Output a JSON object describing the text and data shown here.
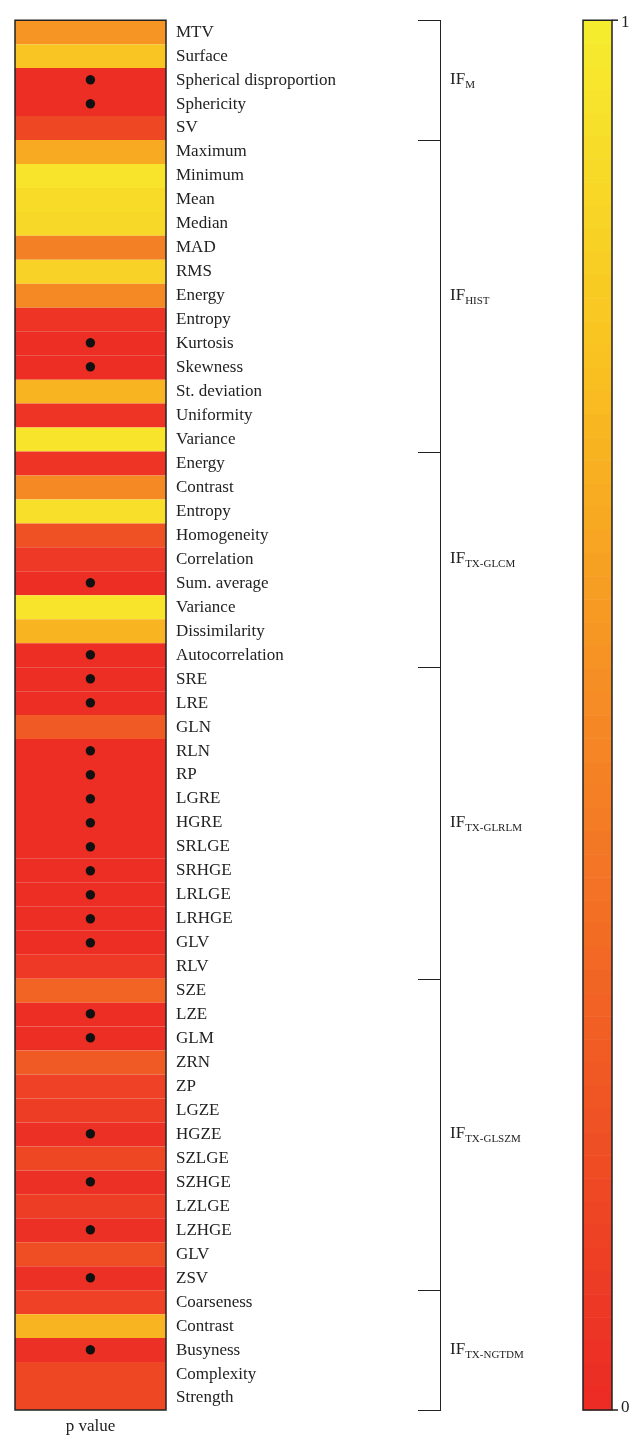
{
  "chart_data": {
    "type": "heatmap",
    "xlabel": "p value",
    "categories": [
      null
    ],
    "y_categories": [
      "MTV",
      "Surface",
      "Spherical disproportion",
      "Sphericity",
      "SV",
      "Maximum",
      "Minimum",
      "Mean",
      "Median",
      "MAD",
      "RMS",
      "Energy",
      "Entropy",
      "Kurtosis",
      "Skewness",
      "St. deviation",
      "Uniformity",
      "Variance",
      "Energy",
      "Contrast",
      "Entropy",
      "Homogeneity",
      "Correlation",
      "Sum. average",
      "Variance",
      "Dissimilarity",
      "Autocorrelation",
      "SRE",
      "LRE",
      "GLN",
      "RLN",
      "RP",
      "LGRE",
      "HGRE",
      "SRLGE",
      "SRHGE",
      "LRLGE",
      "LRHGE",
      "GLV",
      "RLV",
      "SZE",
      "LZE",
      "GLM",
      "ZRN",
      "ZP",
      "LGZE",
      "HGZE",
      "SZLGE",
      "SZHGE",
      "LZLGE",
      "LZHGE",
      "GLV",
      "ZSV",
      "Coarseness",
      "Contrast",
      "Busyness",
      "Complexity",
      "Strength"
    ],
    "y2_categories": [
      null,
      null,
      "IF$_{M}$",
      null,
      null,
      null,
      null,
      null,
      null,
      null,
      null,
      "IF$_{HIST}$",
      null,
      null,
      null,
      null,
      null,
      null,
      null,
      null,
      null,
      null,
      "IF$_{TX-GLCM}$",
      null,
      null,
      null,
      null,
      null,
      null,
      null,
      null,
      null,
      null,
      "IF$_{TX-GLRLM}$",
      null,
      null,
      null,
      null,
      null,
      null,
      null,
      null,
      null,
      null,
      null,
      null,
      "IF$_{TX-GLSZM}$",
      null,
      null,
      null,
      null,
      null,
      null,
      null,
      null,
      "IF$_{TX-NGTDM}$",
      null,
      null
    ],
    "cells": [
      [
        0.55
      ],
      [
        0.78
      ],
      [
        0.02
      ],
      [
        0.02
      ],
      [
        0.15
      ],
      [
        0.65
      ],
      [
        0.95
      ],
      [
        0.9
      ],
      [
        0.88
      ],
      [
        0.45
      ],
      [
        0.85
      ],
      [
        0.5
      ],
      [
        0.05
      ],
      [
        0.02
      ],
      [
        0.02
      ],
      [
        0.7
      ],
      [
        0.05
      ],
      [
        0.95
      ],
      [
        0.05
      ],
      [
        0.5
      ],
      [
        0.92
      ],
      [
        0.2
      ],
      [
        0.08
      ],
      [
        0.02
      ],
      [
        0.95
      ],
      [
        0.7
      ],
      [
        0.02
      ],
      [
        0.02
      ],
      [
        0.02
      ],
      [
        0.25
      ],
      [
        0.02
      ],
      [
        0.02
      ],
      [
        0.02
      ],
      [
        0.02
      ],
      [
        0.02
      ],
      [
        0.02
      ],
      [
        0.02
      ],
      [
        0.02
      ],
      [
        0.02
      ],
      [
        0.08
      ],
      [
        0.3
      ],
      [
        0.02
      ],
      [
        0.02
      ],
      [
        0.25
      ],
      [
        0.12
      ],
      [
        0.1
      ],
      [
        0.03
      ],
      [
        0.15
      ],
      [
        0.03
      ],
      [
        0.1
      ],
      [
        0.03
      ],
      [
        0.18
      ],
      [
        0.03
      ],
      [
        0.12
      ],
      [
        0.7
      ],
      [
        0.03
      ],
      [
        0.15
      ],
      [
        0.15
      ]
    ],
    "cell_labels": [
      [
        null
      ],
      [
        null
      ],
      [
        "●"
      ],
      [
        "●"
      ],
      [
        null
      ],
      [
        null
      ],
      [
        null
      ],
      [
        null
      ],
      [
        null
      ],
      [
        null
      ],
      [
        null
      ],
      [
        null
      ],
      [
        null
      ],
      [
        "●"
      ],
      [
        "●"
      ],
      [
        null
      ],
      [
        null
      ],
      [
        null
      ],
      [
        null
      ],
      [
        null
      ],
      [
        null
      ],
      [
        null
      ],
      [
        null
      ],
      [
        "●"
      ],
      [
        null
      ],
      [
        null
      ],
      [
        "●"
      ],
      [
        "●"
      ],
      [
        "●"
      ],
      [
        null
      ],
      [
        "●"
      ],
      [
        "●"
      ],
      [
        "●"
      ],
      [
        "●"
      ],
      [
        "●"
      ],
      [
        "●"
      ],
      [
        "●"
      ],
      [
        "●"
      ],
      [
        "●"
      ],
      [
        null
      ],
      [
        null
      ],
      [
        "●"
      ],
      [
        "●"
      ],
      [
        null
      ],
      [
        null
      ],
      [
        null
      ],
      [
        "●"
      ],
      [
        null
      ],
      [
        "●"
      ],
      [
        null
      ],
      [
        "●"
      ],
      [
        null
      ],
      [
        "●"
      ],
      [
        null
      ],
      [
        null
      ],
      [
        "●"
      ],
      [
        null
      ],
      [
        null
      ]
    ],
    "clim": [
      0,
      1
    ],
    "cticks": [
      0,
      1
    ]
  }
}
